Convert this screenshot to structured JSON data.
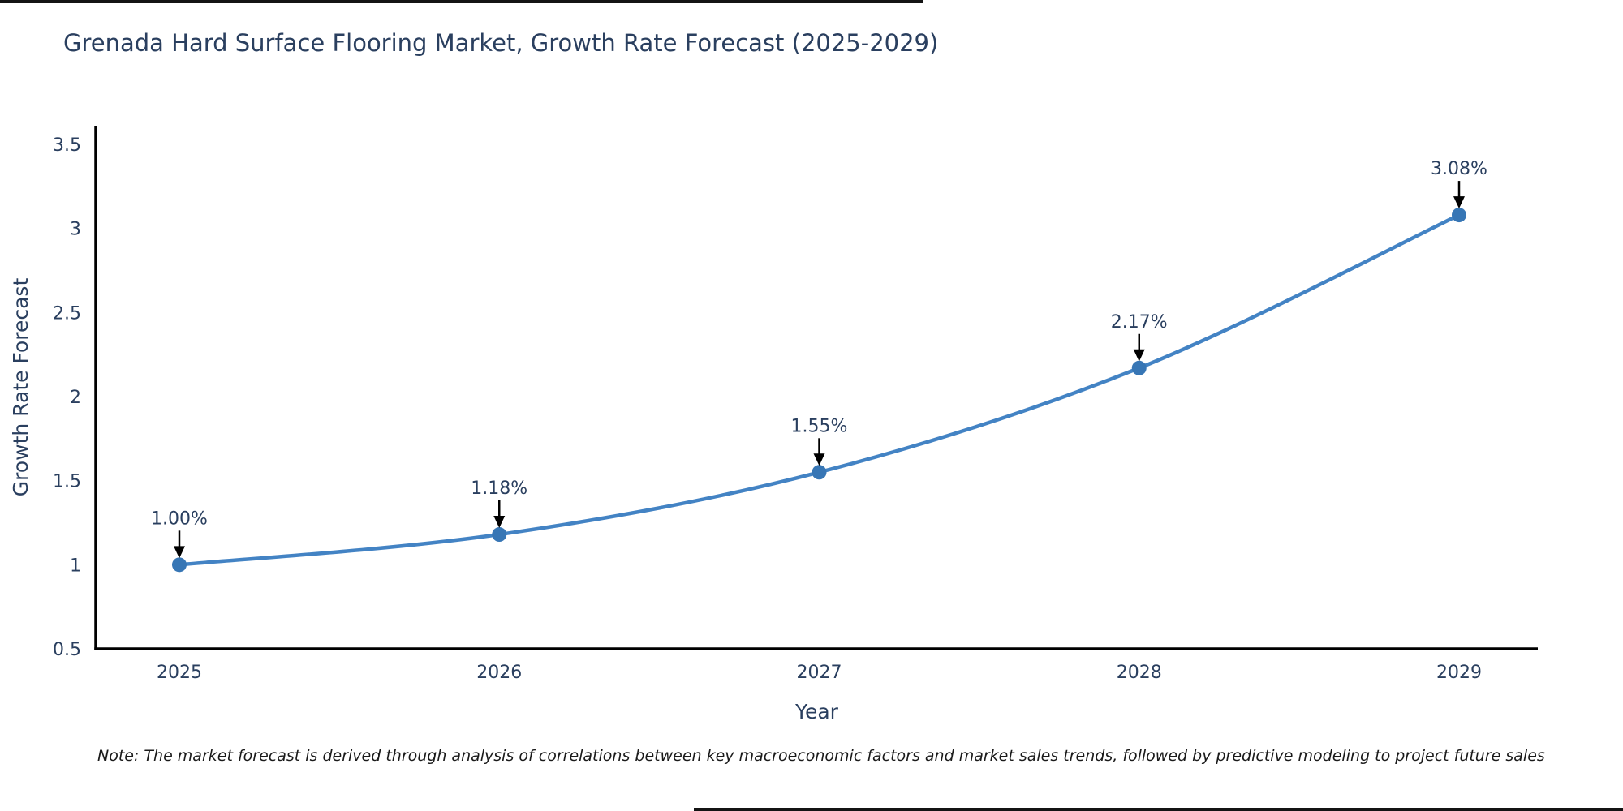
{
  "chart_data": {
    "type": "line",
    "title": "Grenada Hard Surface Flooring Market, Growth Rate Forecast (2025-2029)",
    "xlabel": "Year",
    "ylabel": "Growth Rate Forecast",
    "categories": [
      "2025",
      "2026",
      "2027",
      "2028",
      "2029"
    ],
    "values": [
      1.0,
      1.18,
      1.55,
      2.17,
      3.08
    ],
    "point_labels": [
      "1.00%",
      "1.18%",
      "1.55%",
      "2.17%",
      "3.08%"
    ],
    "ylim": [
      0.5,
      3.5
    ],
    "yticks": [
      0.5,
      1,
      1.5,
      2,
      2.5,
      3,
      3.5
    ],
    "ytick_labels": [
      "0.5",
      "1",
      "1.5",
      "2",
      "2.5",
      "3",
      "3.5"
    ],
    "grid": false,
    "legend": false,
    "line_color": "#4383c4",
    "marker_color": "#3776b5",
    "axis_color": "#000000",
    "text_color": "#2a3f5f",
    "annotation_arrow_color": "#000000"
  },
  "note": {
    "text": "Note: The market forecast is derived through analysis of correlations between key macroeconomic factors and market sales trends, followed by predictive modeling to project future sales"
  }
}
